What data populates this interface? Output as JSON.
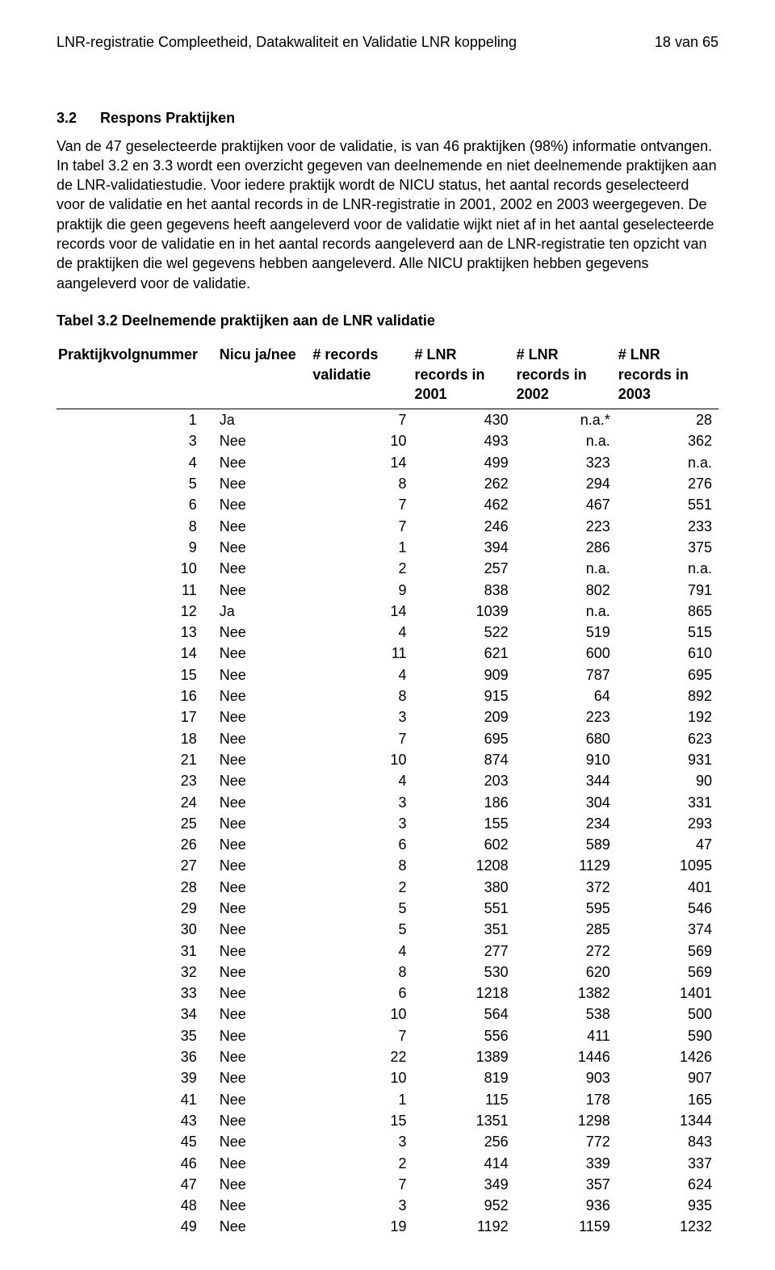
{
  "header": {
    "left": "LNR-registratie Compleetheid, Datakwaliteit en Validatie LNR koppeling",
    "right": "18 van 65"
  },
  "section": {
    "number": "3.2",
    "title": "Respons Praktijken"
  },
  "body": "Van de 47 geselecteerde praktijken voor de validatie, is van 46 praktijken (98%) informatie ontvangen. In tabel 3.2 en 3.3 wordt een overzicht gegeven van deelnemende en niet deelnemende praktijken aan de LNR-validatiestudie. Voor iedere praktijk wordt de NICU status, het aantal records geselecteerd voor de validatie en het aantal records in de LNR-registratie in 2001, 2002 en 2003 weergegeven. De praktijk die geen gegevens heeft aangeleverd voor de validatie wijkt niet af in het aantal geselecteerde records voor de validatie en in het aantal records aangeleverd aan de LNR-registratie ten opzicht van de praktijken die wel gegevens hebben aangeleverd. Alle NICU praktijken hebben gegevens aangeleverd voor de validatie.",
  "table": {
    "caption": "Tabel 3.2 Deelnemende praktijken aan de LNR validatie",
    "columns": [
      "Praktijkvolgnummer",
      "Nicu ja/nee",
      "# records validatie",
      "# LNR records in 2001",
      "# LNR records in 2002",
      "# LNR records in 2003"
    ],
    "rows": [
      [
        "1",
        "Ja",
        "7",
        "430",
        "n.a.*",
        "28"
      ],
      [
        "3",
        "Nee",
        "10",
        "493",
        "n.a.",
        "362"
      ],
      [
        "4",
        "Nee",
        "14",
        "499",
        "323",
        "n.a."
      ],
      [
        "5",
        "Nee",
        "8",
        "262",
        "294",
        "276"
      ],
      [
        "6",
        "Nee",
        "7",
        "462",
        "467",
        "551"
      ],
      [
        "8",
        "Nee",
        "7",
        "246",
        "223",
        "233"
      ],
      [
        "9",
        "Nee",
        "1",
        "394",
        "286",
        "375"
      ],
      [
        "10",
        "Nee",
        "2",
        "257",
        "n.a.",
        "n.a."
      ],
      [
        "11",
        "Nee",
        "9",
        "838",
        "802",
        "791"
      ],
      [
        "12",
        "Ja",
        "14",
        "1039",
        "n.a.",
        "865"
      ],
      [
        "13",
        "Nee",
        "4",
        "522",
        "519",
        "515"
      ],
      [
        "14",
        "Nee",
        "11",
        "621",
        "600",
        "610"
      ],
      [
        "15",
        "Nee",
        "4",
        "909",
        "787",
        "695"
      ],
      [
        "16",
        "Nee",
        "8",
        "915",
        "64",
        "892"
      ],
      [
        "17",
        "Nee",
        "3",
        "209",
        "223",
        "192"
      ],
      [
        "18",
        "Nee",
        "7",
        "695",
        "680",
        "623"
      ],
      [
        "21",
        "Nee",
        "10",
        "874",
        "910",
        "931"
      ],
      [
        "23",
        "Nee",
        "4",
        "203",
        "344",
        "90"
      ],
      [
        "24",
        "Nee",
        "3",
        "186",
        "304",
        "331"
      ],
      [
        "25",
        "Nee",
        "3",
        "155",
        "234",
        "293"
      ],
      [
        "26",
        "Nee",
        "6",
        "602",
        "589",
        "47"
      ],
      [
        "27",
        "Nee",
        "8",
        "1208",
        "1129",
        "1095"
      ],
      [
        "28",
        "Nee",
        "2",
        "380",
        "372",
        "401"
      ],
      [
        "29",
        "Nee",
        "5",
        "551",
        "595",
        "546"
      ],
      [
        "30",
        "Nee",
        "5",
        "351",
        "285",
        "374"
      ],
      [
        "31",
        "Nee",
        "4",
        "277",
        "272",
        "569"
      ],
      [
        "32",
        "Nee",
        "8",
        "530",
        "620",
        "569"
      ],
      [
        "33",
        "Nee",
        "6",
        "1218",
        "1382",
        "1401"
      ],
      [
        "34",
        "Nee",
        "10",
        "564",
        "538",
        "500"
      ],
      [
        "35",
        "Nee",
        "7",
        "556",
        "411",
        "590"
      ],
      [
        "36",
        "Nee",
        "22",
        "1389",
        "1446",
        "1426"
      ],
      [
        "39",
        "Nee",
        "10",
        "819",
        "903",
        "907"
      ],
      [
        "41",
        "Nee",
        "1",
        "115",
        "178",
        "165"
      ],
      [
        "43",
        "Nee",
        "15",
        "1351",
        "1298",
        "1344"
      ],
      [
        "45",
        "Nee",
        "3",
        "256",
        "772",
        "843"
      ],
      [
        "46",
        "Nee",
        "2",
        "414",
        "339",
        "337"
      ],
      [
        "47",
        "Nee",
        "7",
        "349",
        "357",
        "624"
      ],
      [
        "48",
        "Nee",
        "3",
        "952",
        "936",
        "935"
      ],
      [
        "49",
        "Nee",
        "19",
        "1192",
        "1159",
        "1232"
      ]
    ]
  }
}
